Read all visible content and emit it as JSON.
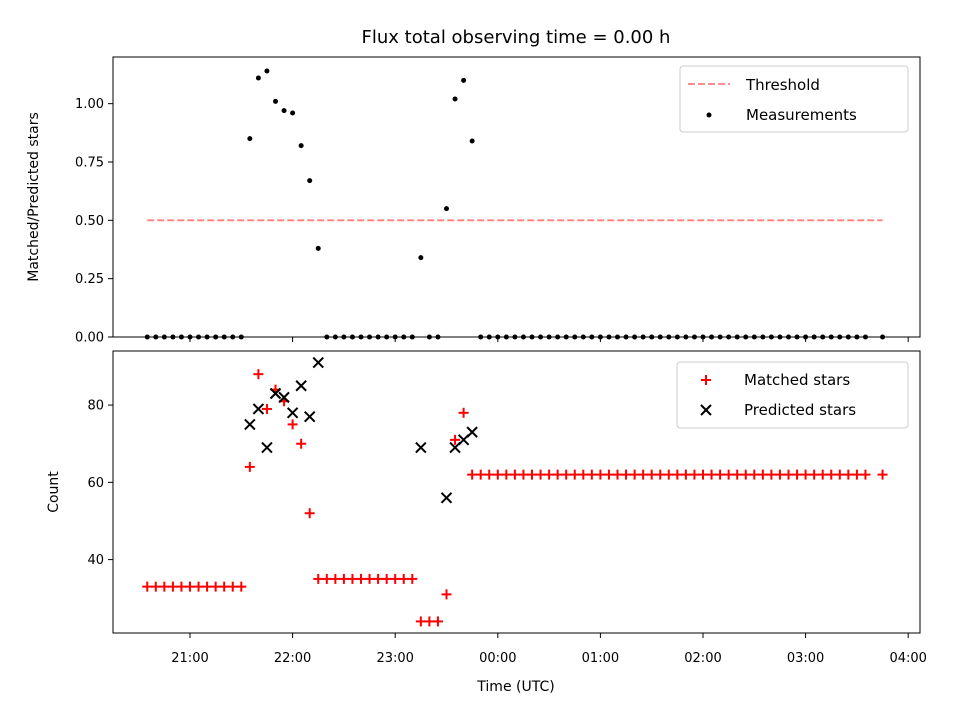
{
  "chart_data": [
    {
      "type": "scatter",
      "title": "Flux total observing time = 0.00 h",
      "ylabel": "Matched/Predicted stars",
      "xlabel": "",
      "ylim": [
        0,
        1.2
      ],
      "yticks": [
        "0.00",
        "0.25",
        "0.50",
        "0.75",
        "1.00"
      ],
      "grid": false,
      "legend_position": "top-right",
      "threshold": {
        "name": "Threshold",
        "y": 0.5,
        "x_start": "20:35",
        "x_end": "03:45",
        "color": "#ff7f7f"
      },
      "series": [
        {
          "name": "Measurements",
          "color": "#000000",
          "marker": "dot",
          "x": [
            "20:35",
            "20:40",
            "20:45",
            "20:50",
            "20:55",
            "21:00",
            "21:05",
            "21:10",
            "21:15",
            "21:20",
            "21:25",
            "21:30",
            "21:35",
            "21:40",
            "21:45",
            "21:50",
            "21:55",
            "22:00",
            "22:05",
            "22:10",
            "22:15",
            "22:20",
            "22:25",
            "22:30",
            "22:35",
            "22:40",
            "22:45",
            "22:50",
            "22:55",
            "23:00",
            "23:05",
            "23:10",
            "23:15",
            "23:20",
            "23:25",
            "23:30",
            "23:35",
            "23:40",
            "23:45",
            "23:50",
            "23:55",
            "00:00",
            "00:05",
            "00:10",
            "00:15",
            "00:20",
            "00:25",
            "00:30",
            "00:35",
            "00:40",
            "00:45",
            "00:50",
            "00:55",
            "01:00",
            "01:05",
            "01:10",
            "01:15",
            "01:20",
            "01:25",
            "01:30",
            "01:35",
            "01:40",
            "01:45",
            "01:50",
            "01:55",
            "02:00",
            "02:05",
            "02:10",
            "02:15",
            "02:20",
            "02:25",
            "02:30",
            "02:35",
            "02:40",
            "02:45",
            "02:50",
            "02:55",
            "03:00",
            "03:05",
            "03:10",
            "03:15",
            "03:20",
            "03:25",
            "03:30",
            "03:35",
            "03:45"
          ],
          "y": [
            0,
            0,
            0,
            0,
            0,
            0,
            0,
            0,
            0,
            0,
            0,
            0,
            0.85,
            1.11,
            1.14,
            1.01,
            0.97,
            0.96,
            0.82,
            0.67,
            0.38,
            0,
            0,
            0,
            0,
            0,
            0,
            0,
            0,
            0,
            0,
            0,
            0.34,
            0,
            0,
            0.55,
            1.02,
            1.1,
            0.84,
            0,
            0,
            0,
            0,
            0,
            0,
            0,
            0,
            0,
            0,
            0,
            0,
            0,
            0,
            0,
            0,
            0,
            0,
            0,
            0,
            0,
            0,
            0,
            0,
            0,
            0,
            0,
            0,
            0,
            0,
            0,
            0,
            0,
            0,
            0,
            0,
            0,
            0,
            0,
            0,
            0,
            0,
            0,
            0,
            0,
            0,
            0
          ]
        }
      ]
    },
    {
      "type": "scatter",
      "title": "",
      "ylabel": "Count",
      "xlabel": "Time (UTC)",
      "ylim": [
        21,
        94
      ],
      "yticks": [
        "40",
        "60",
        "80"
      ],
      "xticks": [
        "21:00",
        "22:00",
        "23:00",
        "00:00",
        "01:00",
        "02:00",
        "03:00",
        "04:00"
      ],
      "grid": false,
      "legend_position": "top-right",
      "series": [
        {
          "name": "Matched stars",
          "color": "#ff0000",
          "marker": "plus",
          "x": [
            "20:35",
            "20:40",
            "20:45",
            "20:50",
            "20:55",
            "21:00",
            "21:05",
            "21:10",
            "21:15",
            "21:20",
            "21:25",
            "21:30",
            "21:35",
            "21:40",
            "21:45",
            "21:50",
            "21:55",
            "22:00",
            "22:05",
            "22:10",
            "22:15",
            "22:20",
            "22:25",
            "22:30",
            "22:35",
            "22:40",
            "22:45",
            "22:50",
            "22:55",
            "23:00",
            "23:05",
            "23:10",
            "23:15",
            "23:20",
            "23:25",
            "23:30",
            "23:35",
            "23:40",
            "23:45",
            "23:50",
            "23:55",
            "00:00",
            "00:05",
            "00:10",
            "00:15",
            "00:20",
            "00:25",
            "00:30",
            "00:35",
            "00:40",
            "00:45",
            "00:50",
            "00:55",
            "01:00",
            "01:05",
            "01:10",
            "01:15",
            "01:20",
            "01:25",
            "01:30",
            "01:35",
            "01:40",
            "01:45",
            "01:50",
            "01:55",
            "02:00",
            "02:05",
            "02:10",
            "02:15",
            "02:20",
            "02:25",
            "02:30",
            "02:35",
            "02:40",
            "02:45",
            "02:50",
            "02:55",
            "03:00",
            "03:05",
            "03:10",
            "03:15",
            "03:20",
            "03:25",
            "03:30",
            "03:35",
            "03:45"
          ],
          "y": [
            33,
            33,
            33,
            33,
            33,
            33,
            33,
            33,
            33,
            33,
            33,
            33,
            64,
            88,
            79,
            84,
            81,
            75,
            70,
            52,
            35,
            35,
            35,
            35,
            35,
            35,
            35,
            35,
            35,
            35,
            35,
            35,
            24,
            24,
            24,
            31,
            71,
            78,
            62,
            62,
            62,
            62,
            62,
            62,
            62,
            62,
            62,
            62,
            62,
            62,
            62,
            62,
            62,
            62,
            62,
            62,
            62,
            62,
            62,
            62,
            62,
            62,
            62,
            62,
            62,
            62,
            62,
            62,
            62,
            62,
            62,
            62,
            62,
            62,
            62,
            62,
            62,
            62,
            62,
            62,
            62,
            62,
            62,
            62,
            62,
            62
          ]
        },
        {
          "name": "Predicted stars",
          "color": "#000000",
          "marker": "x",
          "x": [
            "21:35",
            "21:40",
            "21:45",
            "21:50",
            "21:55",
            "22:00",
            "22:05",
            "22:10",
            "22:15",
            "23:15",
            "23:30",
            "23:35",
            "23:40",
            "23:45"
          ],
          "y": [
            75,
            79,
            69,
            83,
            82,
            78,
            85,
            77,
            91,
            69,
            56,
            69,
            71,
            73
          ]
        }
      ]
    }
  ]
}
